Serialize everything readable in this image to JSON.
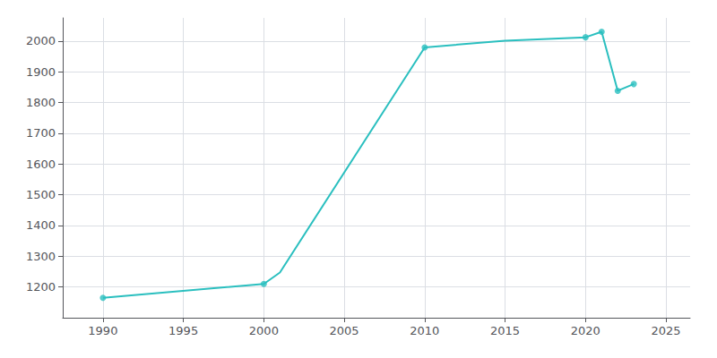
{
  "chart_data": {
    "type": "line",
    "grid": true,
    "xlim": [
      1987.5,
      2026.5
    ],
    "ylim": [
      1100,
      2075
    ],
    "xticks": [
      1990,
      1995,
      2000,
      2005,
      2010,
      2015,
      2020,
      2025
    ],
    "yticks": [
      1200,
      1300,
      1400,
      1500,
      1600,
      1700,
      1800,
      1900,
      2000
    ],
    "series": [
      {
        "type": "line",
        "color": "#2abfbf",
        "x": [
          1990,
          2000,
          2001,
          2010,
          2015,
          2020,
          2021,
          2022,
          2023
        ],
        "values": [
          1165,
          1210,
          1247,
          1979,
          2001,
          2012,
          2030,
          1838,
          1860
        ]
      },
      {
        "type": "scatter",
        "marker": "circle",
        "color": "#2abfbf",
        "x": [
          1990,
          2000,
          2010,
          2020,
          2021,
          2022,
          2023
        ],
        "values": [
          1165,
          1210,
          1979,
          2012,
          2030,
          1838,
          1860
        ]
      }
    ]
  }
}
